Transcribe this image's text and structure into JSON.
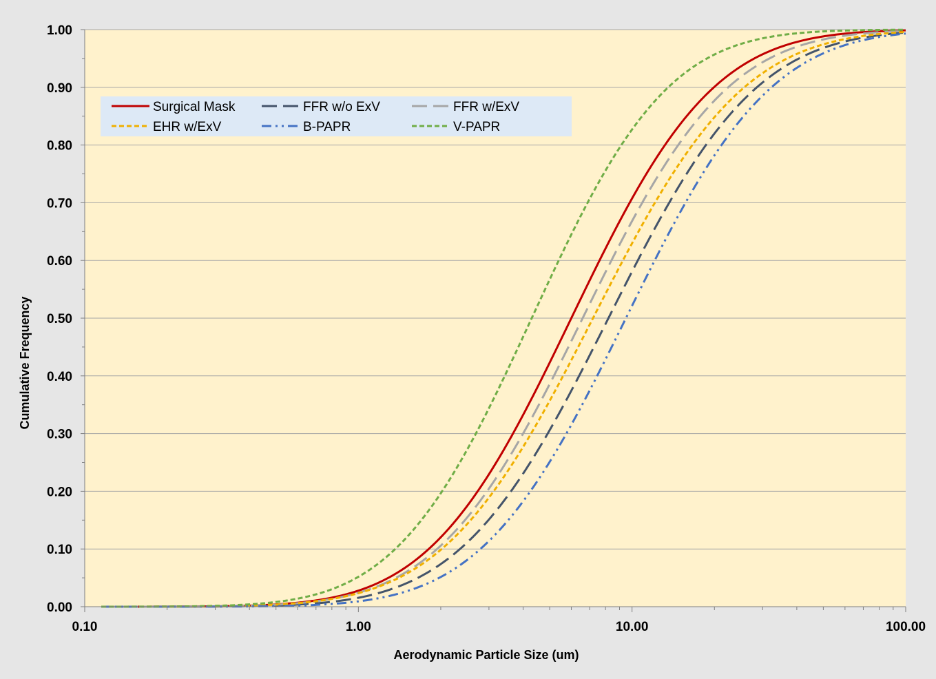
{
  "chart_data": {
    "type": "line",
    "title": "",
    "xlabel": "Aerodynamic Particle Size (um)",
    "ylabel": "Cumulative Frequency",
    "xscale": "log",
    "xlim": [
      0.1,
      100
    ],
    "ylim": [
      0,
      1
    ],
    "xticks": [
      "0.10",
      "1.00",
      "10.00",
      "100.00"
    ],
    "yticks": [
      "0.00",
      "0.10",
      "0.20",
      "0.30",
      "0.40",
      "0.50",
      "0.60",
      "0.70",
      "0.80",
      "0.90",
      "1.00"
    ],
    "grid": "horizontal",
    "legend_position": "top-left",
    "background": "#fff2cc",
    "series": [
      {
        "name": "Surgical Mask",
        "color": "#c00000",
        "dash": "solid",
        "median": 6.0,
        "gsd": 2.55,
        "x_start": 0.115,
        "x_end": 100
      },
      {
        "name": "FFR w/o ExV",
        "color": "#44546a",
        "dash": "long-dash",
        "median": 8.2,
        "gsd": 2.65,
        "x_start": 0.115,
        "x_end": 100
      },
      {
        "name": "FFR w/ExV",
        "color": "#a6a6a6",
        "dash": "long-dash",
        "median": 6.6,
        "gsd": 2.6,
        "x_start": 0.115,
        "x_end": 100
      },
      {
        "name": "EHR w/ExV",
        "color": "#f0b000",
        "dash": "short-dash",
        "median": 7.2,
        "gsd": 2.7,
        "x_start": 0.115,
        "x_end": 100
      },
      {
        "name": "B-PAPR",
        "color": "#4472c4",
        "dash": "dash-dot-dot",
        "median": 9.5,
        "gsd": 2.6,
        "x_start": 0.115,
        "x_end": 100
      },
      {
        "name": "V-PAPR",
        "color": "#70ad47",
        "dash": "short-dash",
        "median": 4.3,
        "gsd": 2.45,
        "x_start": 0.115,
        "x_end": 100
      }
    ]
  }
}
